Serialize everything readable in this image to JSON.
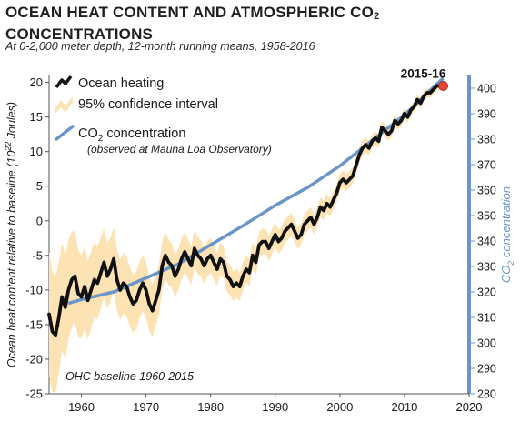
{
  "title_main": "OCEAN HEAT CONTENT AND ATMOSPHERIC CO",
  "title_sub": "2",
  "title_line2": "CONCENTRATIONS",
  "subtitle": "At 0-2,000 meter depth, 12-month running means, 1958-2016",
  "legend": {
    "ocean": "Ocean heating",
    "ci": "95% confidence interval",
    "co2_a": "CO",
    "co2_sub": "2",
    "co2_b": " concentration",
    "co2_note": "(observed at Mauna Loa Observatory)"
  },
  "yleft_label": "Ocean heat content relative to baseline (10",
  "yleft_label_sup": "22",
  "yleft_label_end": " Joules)",
  "yright_label_a": "CO",
  "yright_label_sub": "2",
  "yright_label_b": " concentration",
  "baseline_note": "OHC baseline 1960-2015",
  "end_label": "2015-16",
  "colors": {
    "ocean": "#111111",
    "ci": "#fde3b4",
    "co2": "#6b95c8",
    "endpoint": "#e8443a"
  },
  "chart_data": {
    "type": "line",
    "x_ticks": [
      "1960",
      "1970",
      "1980",
      "1990",
      "2000",
      "2010",
      "2020"
    ],
    "xlim": [
      1955,
      2020
    ],
    "yleft_ticks": [
      "20",
      "15",
      "10",
      "5",
      "0",
      "-5",
      "-10",
      "-15",
      "-20",
      "-25"
    ],
    "ylim_left": [
      -25,
      21
    ],
    "yright_ticks": [
      "400",
      "390",
      "380",
      "370",
      "360",
      "350",
      "340",
      "330",
      "320",
      "310",
      "300",
      "290",
      "280"
    ],
    "ylim_right": [
      280,
      405
    ],
    "series": [
      {
        "name": "Ocean heating",
        "x": [
          1955.0,
          1955.5,
          1956.0,
          1956.5,
          1957.0,
          1957.5,
          1958.0,
          1958.5,
          1959.0,
          1959.5,
          1960.0,
          1960.5,
          1961.0,
          1961.5,
          1962.0,
          1962.5,
          1963.0,
          1963.5,
          1964.0,
          1964.5,
          1965.0,
          1965.5,
          1966.0,
          1966.5,
          1967.0,
          1967.5,
          1968.0,
          1968.5,
          1969.0,
          1969.5,
          1970.0,
          1970.5,
          1971.0,
          1971.5,
          1972.0,
          1972.5,
          1973.0,
          1973.5,
          1974.0,
          1974.5,
          1975.0,
          1975.5,
          1976.0,
          1976.5,
          1977.0,
          1977.5,
          1978.0,
          1978.5,
          1979.0,
          1979.5,
          1980.0,
          1980.5,
          1981.0,
          1981.5,
          1982.0,
          1982.5,
          1983.0,
          1983.5,
          1984.0,
          1984.5,
          1985.0,
          1985.5,
          1986.0,
          1986.5,
          1987.0,
          1987.5,
          1988.0,
          1988.5,
          1989.0,
          1989.5,
          1990.0,
          1990.5,
          1991.0,
          1991.5,
          1992.0,
          1992.5,
          1993.0,
          1993.5,
          1994.0,
          1994.5,
          1995.0,
          1995.5,
          1996.0,
          1996.5,
          1997.0,
          1997.5,
          1998.0,
          1998.5,
          1999.0,
          1999.5,
          2000.0,
          2000.5,
          2001.0,
          2001.5,
          2002.0,
          2002.5,
          2003.0,
          2003.5,
          2004.0,
          2004.5,
          2005.0,
          2005.5,
          2006.0,
          2006.5,
          2007.0,
          2007.5,
          2008.0,
          2008.5,
          2009.0,
          2009.5,
          2010.0,
          2010.5,
          2011.0,
          2011.5,
          2012.0,
          2012.5,
          2013.0,
          2013.5,
          2014.0,
          2014.5,
          2015.0,
          2015.5,
          2016.0
        ],
        "values": [
          -13.5,
          -16.0,
          -16.5,
          -14.0,
          -11.0,
          -12.5,
          -10.0,
          -8.5,
          -8.0,
          -10.5,
          -11.0,
          -9.5,
          -11.5,
          -10.0,
          -8.5,
          -9.0,
          -7.5,
          -6.0,
          -8.0,
          -7.0,
          -5.5,
          -8.5,
          -10.0,
          -9.0,
          -9.5,
          -11.0,
          -12.0,
          -11.5,
          -10.0,
          -9.0,
          -10.0,
          -12.0,
          -13.0,
          -11.5,
          -10.0,
          -6.5,
          -5.0,
          -6.0,
          -6.5,
          -8.0,
          -7.0,
          -5.5,
          -4.5,
          -5.5,
          -6.5,
          -4.0,
          -5.0,
          -5.5,
          -6.5,
          -5.5,
          -5.0,
          -6.0,
          -7.0,
          -5.5,
          -6.0,
          -8.0,
          -8.5,
          -9.5,
          -9.0,
          -9.5,
          -8.0,
          -7.0,
          -7.5,
          -5.0,
          -6.0,
          -3.5,
          -3.0,
          -3.0,
          -4.0,
          -3.0,
          -2.0,
          -3.0,
          -2.5,
          -1.5,
          -1.0,
          -0.5,
          -1.5,
          -2.5,
          -2.0,
          -0.5,
          0.0,
          0.5,
          -0.5,
          0.5,
          2.0,
          1.5,
          2.5,
          2.0,
          3.0,
          4.0,
          5.5,
          6.0,
          5.5,
          6.0,
          6.5,
          8.0,
          9.5,
          10.5,
          11.0,
          10.5,
          11.5,
          12.0,
          11.5,
          13.5,
          13.0,
          12.5,
          13.0,
          14.5,
          14.0,
          14.5,
          15.5,
          15.0,
          16.0,
          16.5,
          17.5,
          17.0,
          18.0,
          18.5,
          18.5,
          19.0,
          19.5,
          19.5,
          19.5
        ]
      },
      {
        "name": "CO2 concentration",
        "x": [
          1958,
          1960,
          1965,
          1970,
          1975,
          1980,
          1985,
          1990,
          1995,
          2000,
          2005,
          2010,
          2016
        ],
        "values": [
          315.5,
          317,
          320,
          325.5,
          331,
          338.5,
          346,
          354,
          361,
          369.5,
          379.5,
          389.5,
          404
        ]
      }
    ],
    "ci_halfwidth": [
      [
        1955,
        9
      ],
      [
        1960,
        6
      ],
      [
        1965,
        4.5
      ],
      [
        1970,
        4
      ],
      [
        1975,
        3
      ],
      [
        1980,
        2.5
      ],
      [
        1985,
        2
      ],
      [
        1990,
        1.8
      ],
      [
        1995,
        1.5
      ],
      [
        2000,
        1.3
      ],
      [
        2005,
        1.0
      ],
      [
        2010,
        0.8
      ],
      [
        2016,
        0.6
      ]
    ],
    "endpoint": {
      "x": 2016,
      "y": 19.5,
      "label": "2015-16"
    }
  }
}
